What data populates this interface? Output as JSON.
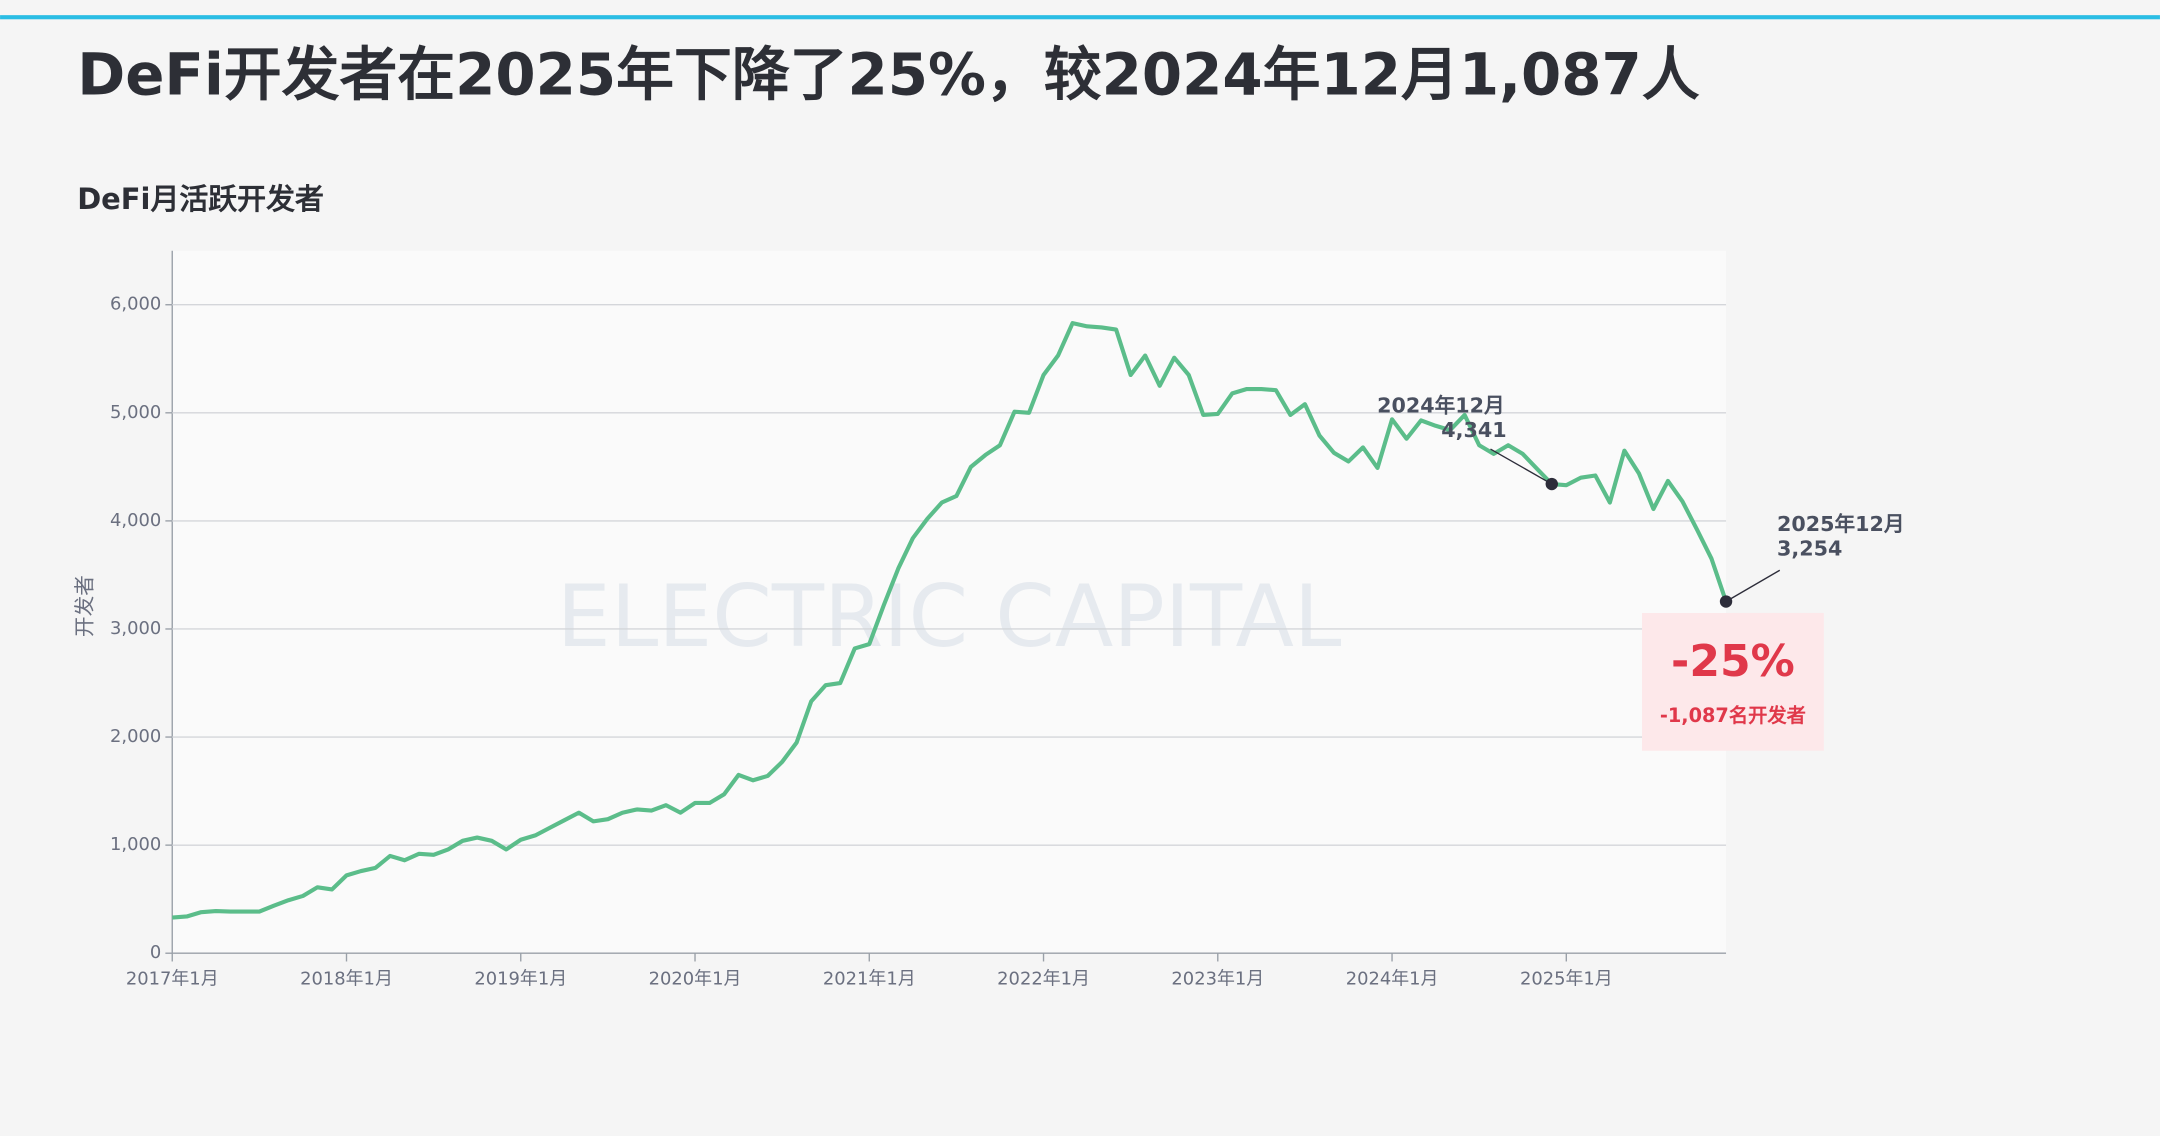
{
  "chart_data": {
    "type": "line",
    "title": "DeFi开发者在2025年下降了25%，较2024年12月1,087人",
    "subtitle": "DeFi月活跃开发者",
    "y_label": "开发者",
    "watermark": "ELECTRIC CAPITAL",
    "categories": [
      "2017年1月",
      null,
      null,
      null,
      null,
      null,
      null,
      null,
      null,
      null,
      null,
      null,
      "2018年1月",
      null,
      null,
      null,
      null,
      null,
      null,
      null,
      null,
      null,
      null,
      null,
      "2019年1月",
      null,
      null,
      null,
      null,
      null,
      null,
      null,
      null,
      null,
      null,
      null,
      "2020年1月",
      null,
      null,
      null,
      null,
      null,
      null,
      null,
      null,
      null,
      null,
      null,
      "2021年1月",
      null,
      null,
      null,
      null,
      null,
      null,
      null,
      null,
      null,
      null,
      null,
      "2022年1月",
      null,
      null,
      null,
      null,
      null,
      null,
      null,
      null,
      null,
      null,
      null,
      "2023年1月",
      null,
      null,
      null,
      null,
      null,
      null,
      null,
      null,
      null,
      null,
      null,
      "2024年1月",
      null,
      null,
      null,
      null,
      null,
      null,
      null,
      null,
      null,
      null,
      null,
      "2025年1月",
      null,
      null,
      null,
      null,
      null,
      null,
      null,
      null,
      null,
      null,
      null
    ],
    "series": [
      {
        "name": "DeFi",
        "color": "#5bbd8a",
        "values": [
          330,
          340,
          380,
          390,
          385,
          385,
          385,
          440,
          490,
          530,
          610,
          590,
          720,
          760,
          790,
          900,
          860,
          920,
          910,
          960,
          1040,
          1070,
          1040,
          960,
          1050,
          1090,
          1160,
          1230,
          1300,
          1220,
          1240,
          1300,
          1330,
          1320,
          1370,
          1300,
          1390,
          1390,
          1470,
          1650,
          1600,
          1640,
          1770,
          1950,
          2330,
          2480,
          2500,
          2820,
          2860,
          3220,
          3560,
          3840,
          4020,
          4170,
          4230,
          4500,
          4610,
          4700,
          5010,
          5000,
          5350,
          5530,
          5830,
          5800,
          5790,
          5770,
          5350,
          5530,
          5250,
          5510,
          5350,
          4980,
          4990,
          5180,
          5220,
          5220,
          5210,
          4980,
          5080,
          4790,
          4630,
          4550,
          4680,
          4490,
          4940,
          4760,
          4930,
          4880,
          4840,
          4980,
          4700,
          4620,
          4700,
          4620,
          4480,
          4341,
          4330,
          4400,
          4420,
          4170,
          4650,
          4440,
          4110,
          4370,
          4180,
          3920,
          3650,
          3254
        ]
      }
    ],
    "ylim": [
      0,
      6500
    ],
    "yticks": [
      0,
      {
        "value": 1000,
        "label": "1,000"
      },
      {
        "value": 2000,
        "label": "2,000"
      },
      {
        "value": 3000,
        "label": "3,000"
      },
      {
        "value": 4000,
        "label": "4,000"
      },
      {
        "value": 5000,
        "label": "5,000"
      },
      {
        "value": 6000,
        "label": "6,000"
      }
    ],
    "grid": true,
    "annotations": [
      {
        "x": "2024年12月",
        "value": 4341,
        "label": "4,341"
      },
      {
        "x": "2025年12月",
        "value": 3254,
        "label": "3,254"
      }
    ],
    "callout": {
      "text": "-25%",
      "subtext": "-1,087名开发者"
    }
  }
}
